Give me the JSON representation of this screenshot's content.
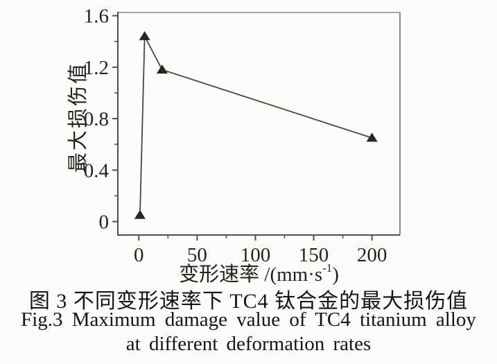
{
  "figure": {
    "background": "#fdfcfa",
    "caption_zh": "图 3  不同变形速率下 TC4 钛合金的最大损伤值",
    "caption_en_line1": "Fig.3  Maximum damage value of TC4 titanium alloy",
    "caption_en_line2": "at different deformation rates"
  },
  "chart_data": {
    "type": "line",
    "title": "",
    "marker": "triangle-up",
    "x": [
      1,
      5,
      20,
      200
    ],
    "y": [
      0.05,
      1.44,
      1.18,
      0.65
    ],
    "xlabel_prefix": "变形速率 /(mm·s",
    "xlabel_sup": "-1",
    "xlabel_suffix": ")",
    "ylabel": "最大损伤值",
    "xlim": [
      -18,
      224
    ],
    "ylim": [
      -0.105,
      1.625
    ],
    "x_major_ticks": [
      0,
      50,
      100,
      150,
      200
    ],
    "x_tick_labels": [
      "0",
      "50",
      "100",
      "150",
      "200"
    ],
    "x_minor_ticks": [
      25,
      75,
      125,
      175
    ],
    "y_major_ticks": [
      0,
      0.4,
      0.8,
      1.2,
      1.6
    ],
    "y_tick_labels": [
      "0",
      "0.4",
      "0.8",
      "1.2",
      "1.6"
    ],
    "y_minor_ticks": [
      0.2,
      0.6,
      1.0,
      1.4
    ],
    "grid": false,
    "legend": "none",
    "colors": {
      "line": "#45453c",
      "marker": "#26261c",
      "axis": "#4e4e46",
      "text": "#23231e"
    }
  }
}
